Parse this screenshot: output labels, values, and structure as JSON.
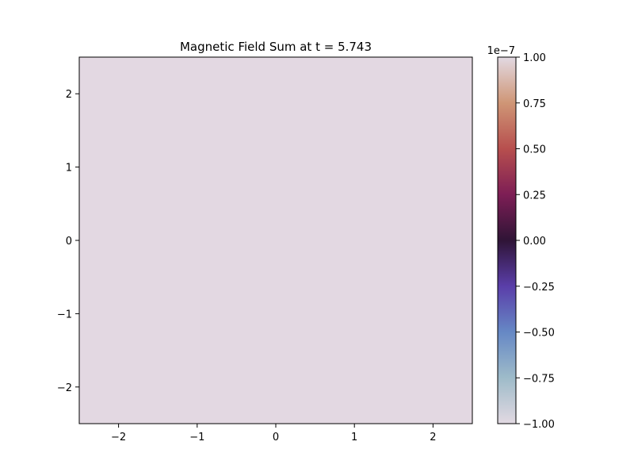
{
  "chart_data": {
    "type": "heatmap",
    "title": "Magnetic Field Sum at t = 5.743",
    "xlabel": "",
    "ylabel": "",
    "xlim": [
      -2.5,
      2.5
    ],
    "ylim": [
      -2.5,
      2.5
    ],
    "x_ticks": [
      -2,
      -1,
      0,
      1,
      2
    ],
    "y_ticks": [
      -2,
      -1,
      0,
      1,
      2
    ],
    "x_tick_labels": [
      "−2",
      "−1",
      "0",
      "1",
      "2"
    ],
    "y_tick_labels": [
      "−2",
      "−1",
      "0",
      "1",
      "2"
    ],
    "field_value": 1e-07,
    "field_color": "#e3d8e2",
    "grid": false,
    "colorbar": {
      "placement": "right",
      "colormap": "twilight",
      "range": [
        -1.0,
        1.0
      ],
      "offset_label": "1e−7",
      "ticks": [
        -1.0,
        -0.75,
        -0.5,
        -0.25,
        0.0,
        0.25,
        0.5,
        0.75,
        1.0
      ],
      "tick_labels": [
        "−1.00",
        "−0.75",
        "−0.50",
        "−0.25",
        "0.00",
        "0.25",
        "0.50",
        "0.75",
        "1.00"
      ],
      "color_stops": [
        {
          "value": -1.0,
          "color": "#e2d9e2"
        },
        {
          "value": -0.75,
          "color": "#9ebbc9"
        },
        {
          "value": -0.5,
          "color": "#6688c5"
        },
        {
          "value": -0.25,
          "color": "#5a3ea9"
        },
        {
          "value": 0.0,
          "color": "#2f1436"
        },
        {
          "value": 0.25,
          "color": "#7d1e55"
        },
        {
          "value": 0.5,
          "color": "#b74f4e"
        },
        {
          "value": 0.75,
          "color": "#cf9676"
        },
        {
          "value": 1.0,
          "color": "#e2d9e2"
        }
      ]
    }
  }
}
